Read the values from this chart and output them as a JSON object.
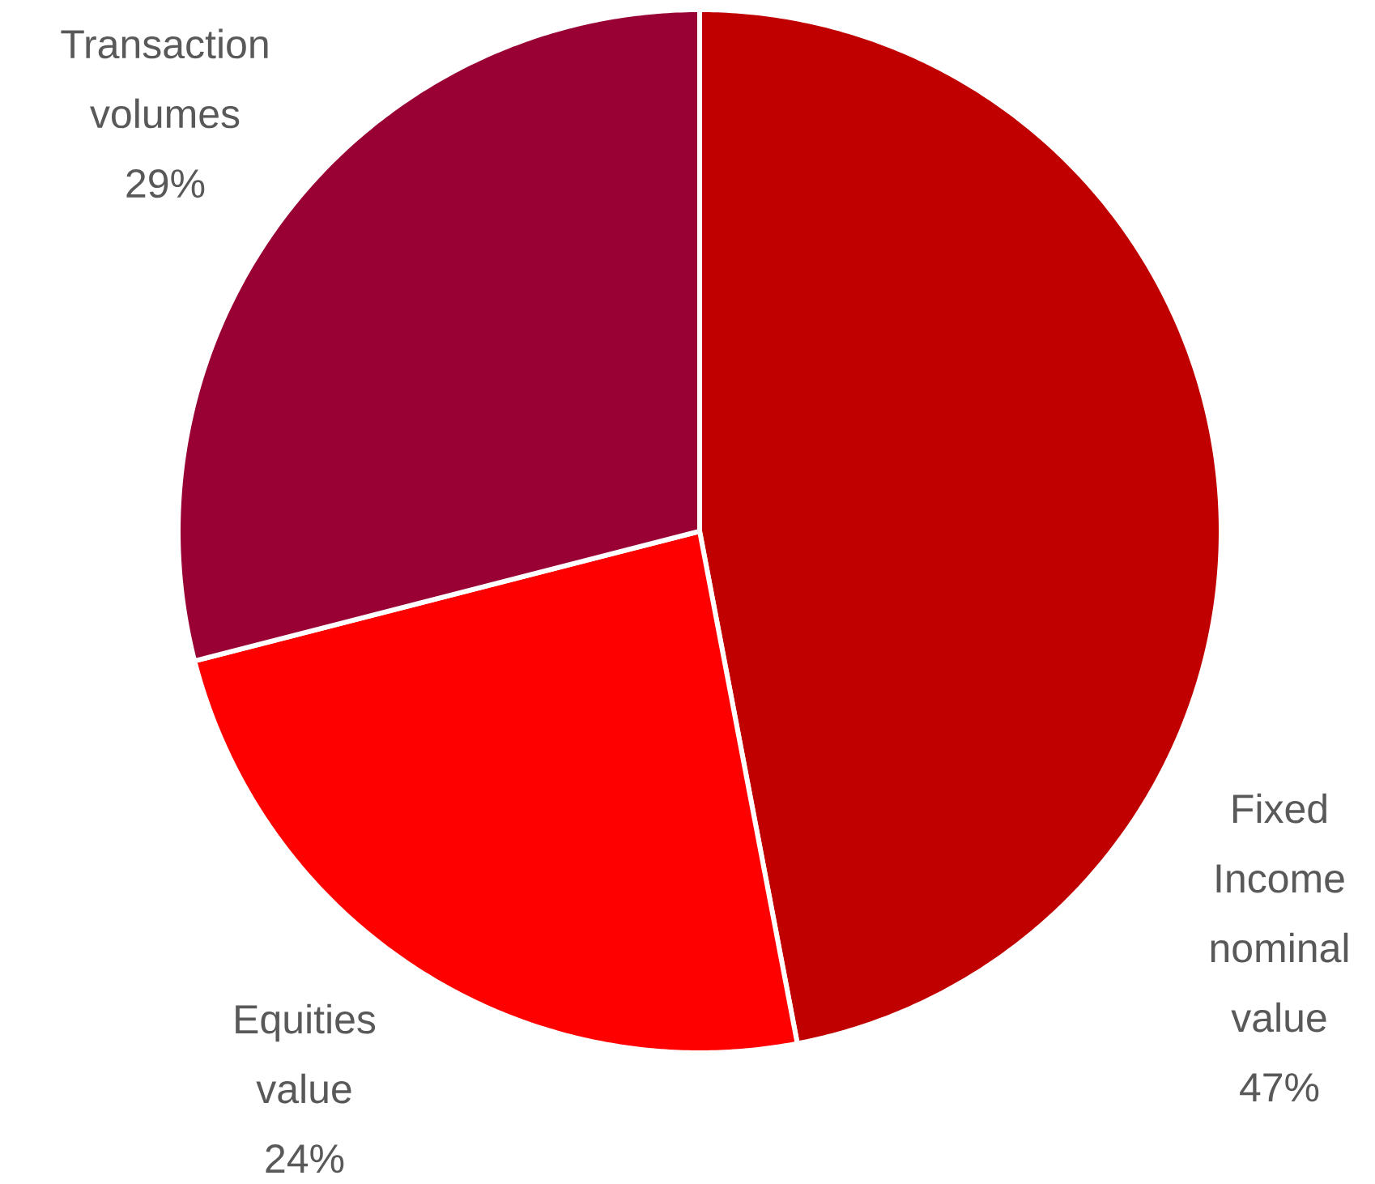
{
  "chart_data": {
    "type": "pie",
    "categories": [
      "Fixed Income nominal value",
      "Equities value",
      "Transaction volumes"
    ],
    "values": [
      47,
      24,
      29
    ],
    "colors": [
      "#c00000",
      "#ff0000",
      "#990033"
    ],
    "value_labels": [
      "47%",
      "24%",
      "29%"
    ]
  }
}
